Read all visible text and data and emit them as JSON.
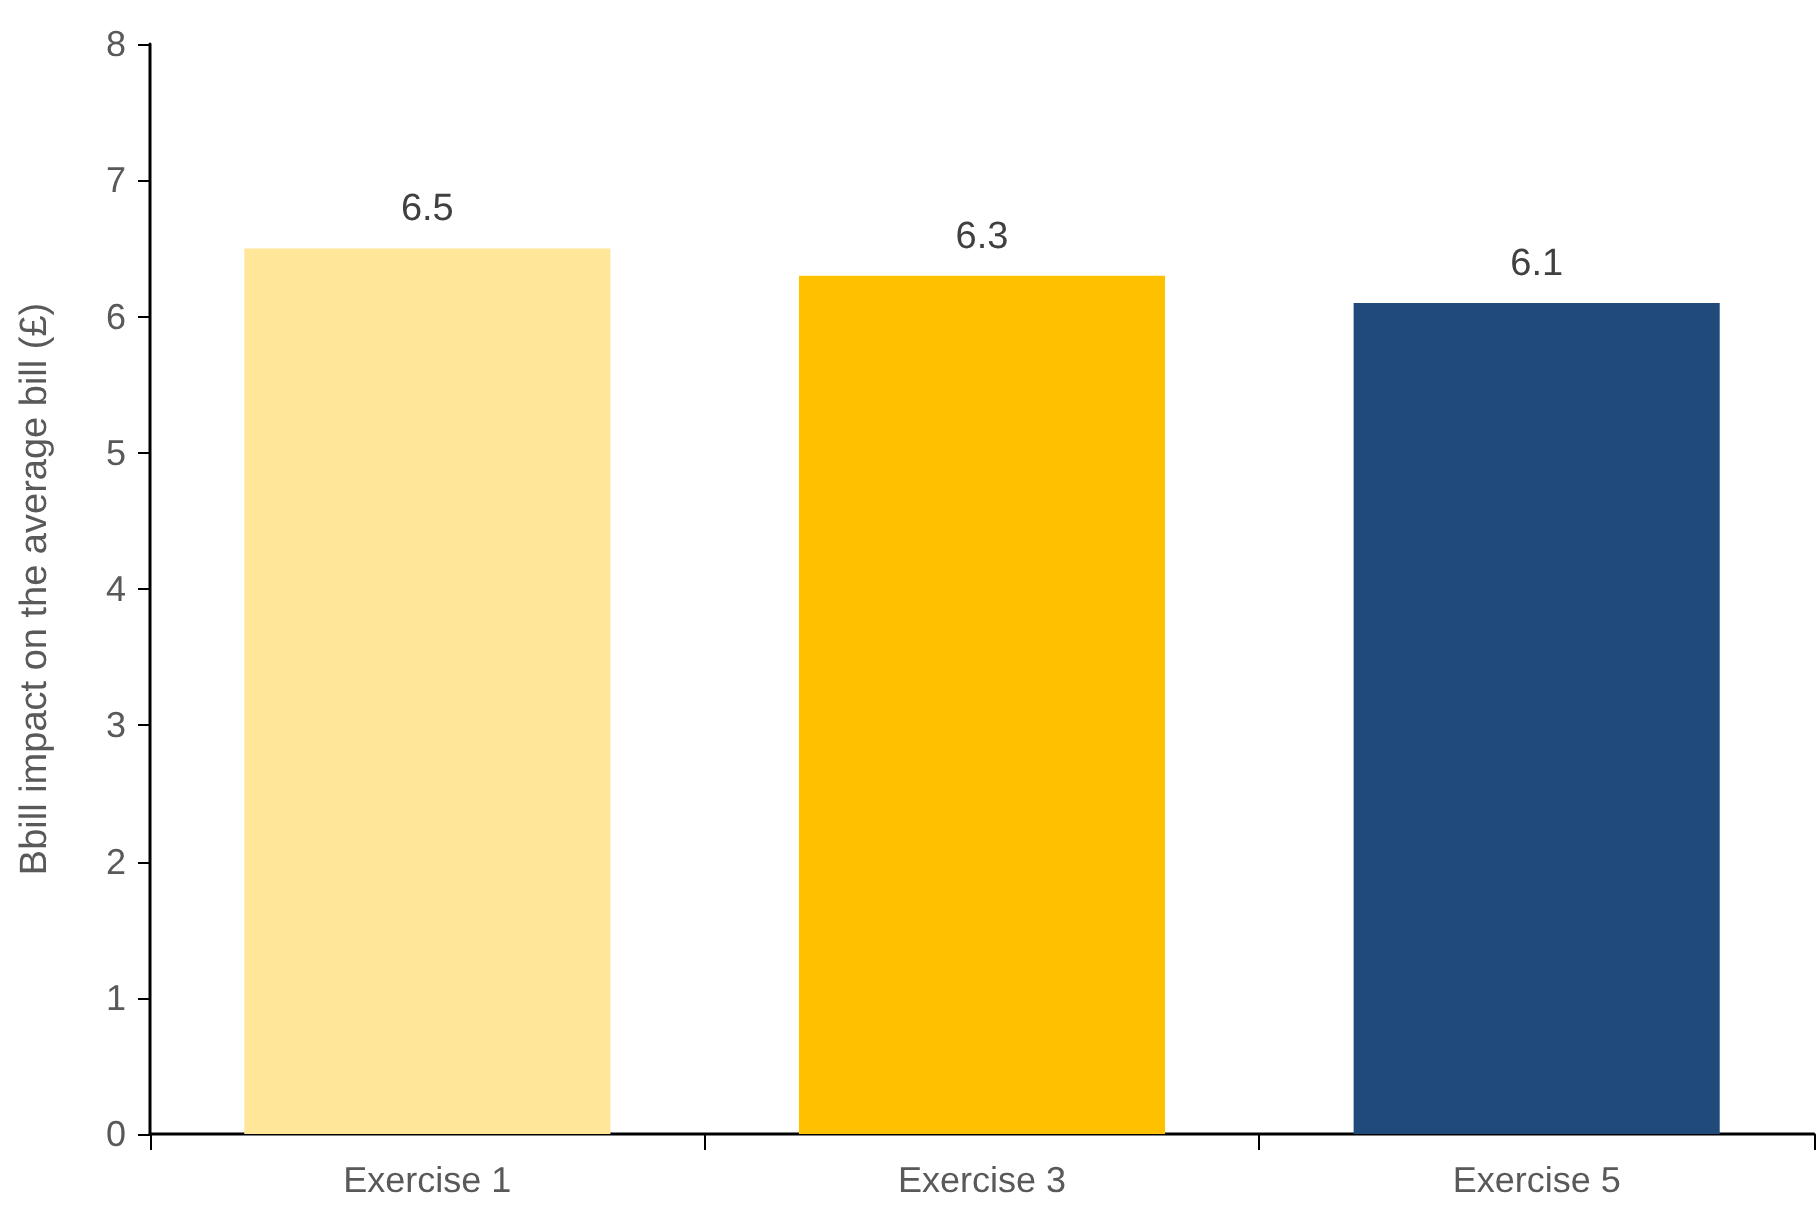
{
  "chart_data": {
    "type": "bar",
    "ylabel": "Bbill impact on the average bill (£)",
    "categories": [
      "Exercise 1",
      "Exercise 3",
      "Exercise 5"
    ],
    "values": [
      6.5,
      6.3,
      6.1
    ],
    "colors": [
      "#ffe699",
      "#ffc000",
      "#1f4a7a"
    ],
    "ylim": [
      0,
      8
    ],
    "yticks": [
      0,
      1,
      2,
      3,
      4,
      5,
      6,
      7,
      8
    ],
    "grid": false,
    "data_labels": true
  }
}
